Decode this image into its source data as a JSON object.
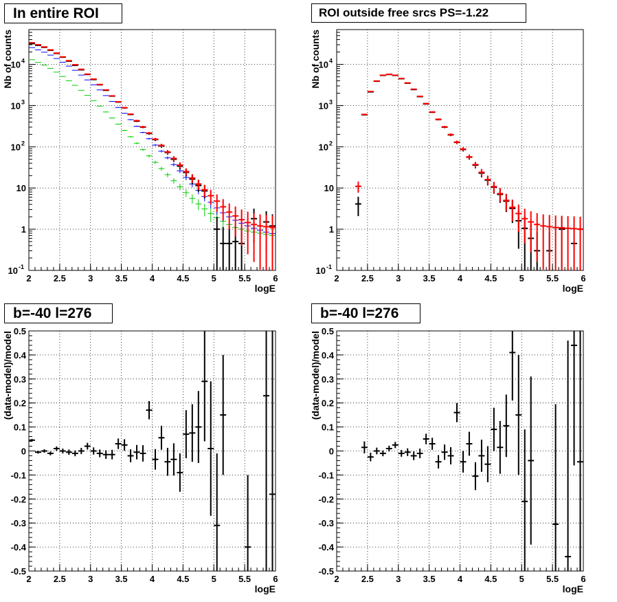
{
  "colors": {
    "data": "#000000",
    "model_total": "#ff0000",
    "model_blue": "#0000ff",
    "model_green": "#00cc00",
    "grid": "#000000"
  },
  "chart_data": [
    {
      "type": "scatter",
      "title": "In entire ROI",
      "xlabel": "logE",
      "ylabel": "Nb of counts",
      "xlim": [
        2,
        6
      ],
      "ylim": [
        0.1,
        70000
      ],
      "yscale": "log",
      "grid": true,
      "x_ticks": [
        "2",
        "2.5",
        "3",
        "3.5",
        "4",
        "4.5",
        "5",
        "5.5",
        "6"
      ],
      "y_ticks": [
        "10^-1",
        "1",
        "10",
        "10^2",
        "10^3",
        "10^4"
      ],
      "x": [
        2.05,
        2.15,
        2.25,
        2.35,
        2.45,
        2.55,
        2.65,
        2.75,
        2.85,
        2.95,
        3.05,
        3.15,
        3.25,
        3.35,
        3.45,
        3.55,
        3.65,
        3.75,
        3.85,
        3.95,
        4.05,
        4.15,
        4.25,
        4.35,
        4.45,
        4.55,
        4.65,
        4.75,
        4.85,
        4.95,
        5.05,
        5.15,
        5.25,
        5.35,
        5.45,
        5.55,
        5.65,
        5.75,
        5.85,
        5.95
      ],
      "series": [
        {
          "color": "#000000",
          "values": [
            32000,
            29000,
            26000,
            22000,
            18500,
            15000,
            12000,
            9500,
            7400,
            5700,
            4300,
            3200,
            2350,
            1700,
            1220,
            880,
            610,
            420,
            300,
            210,
            150,
            105,
            73,
            50,
            34,
            24,
            16.5,
            11.5,
            8.5,
            null,
            1,
            0.45,
            0.45,
            0.5,
            0.45,
            null,
            1.8,
            null,
            1.5,
            1.2
          ]
        },
        {
          "color": "#ff0000",
          "values": [
            33500,
            30000,
            26500,
            22500,
            18800,
            15200,
            12300,
            9800,
            7600,
            5800,
            4400,
            3250,
            2400,
            1720,
            1240,
            890,
            620,
            430,
            305,
            215,
            153,
            108,
            75,
            52,
            36,
            25,
            17.5,
            12.5,
            9,
            6.5,
            4.8,
            3.5,
            2.6,
            2.1,
            1.7,
            1.45,
            1.3,
            1.2,
            1.15,
            1.1
          ]
        },
        {
          "color": "#0000ff",
          "values": [
            25500,
            22500,
            19800,
            16800,
            13900,
            11300,
            9100,
            7200,
            5500,
            4200,
            3200,
            2400,
            1750,
            1260,
            900,
            650,
            455,
            315,
            222,
            157,
            110,
            78,
            54,
            37,
            26,
            18,
            12.5,
            8.8,
            6.2,
            4.5,
            3.3,
            2.5,
            2,
            1.65,
            1.4,
            1.2,
            1.05,
            0.95,
            0.85,
            0.78
          ]
        },
        {
          "color": "#00cc00",
          "values": [
            13000,
            11200,
            9600,
            8000,
            6500,
            5100,
            4000,
            3100,
            2350,
            1770,
            1320,
            970,
            700,
            500,
            355,
            250,
            175,
            122,
            85,
            60,
            42,
            29.5,
            21,
            15,
            10.7,
            7.7,
            5.6,
            4.1,
            3.1,
            2.4,
            1.9,
            1.55,
            1.3,
            1.1,
            1,
            0.9,
            0.85,
            0.8,
            0.75,
            0.7
          ]
        }
      ]
    },
    {
      "type": "scatter",
      "title": "ROI outside free srcs PS=-1.22",
      "xlabel": "logE",
      "ylabel": "Nb of counts",
      "xlim": [
        2,
        6
      ],
      "ylim": [
        0.1,
        70000
      ],
      "yscale": "log",
      "grid": true,
      "x_ticks": [
        "2",
        "2.5",
        "3",
        "3.5",
        "4",
        "4.5",
        "5",
        "5.5",
        "6"
      ],
      "y_ticks": [
        "10^-1",
        "1",
        "10",
        "10^2",
        "10^3",
        "10^4"
      ],
      "x": [
        2.35,
        2.45,
        2.55,
        2.65,
        2.75,
        2.85,
        2.95,
        3.05,
        3.15,
        3.25,
        3.35,
        3.45,
        3.55,
        3.65,
        3.75,
        3.85,
        3.95,
        4.05,
        4.15,
        4.25,
        4.35,
        4.45,
        4.55,
        4.65,
        4.75,
        4.85,
        4.95,
        5.05,
        5.15,
        5.25,
        5.35,
        5.45,
        5.55,
        5.65,
        5.75,
        5.85,
        5.95
      ],
      "series": [
        {
          "color": "#000000",
          "values": [
            4.1,
            600,
            2150,
            3900,
            5400,
            5700,
            5400,
            4500,
            3500,
            2450,
            1650,
            1100,
            690,
            460,
            300,
            195,
            128,
            86,
            56,
            36,
            23,
            15.5,
            10.5,
            7,
            4.8,
            3.2,
            1.6,
            1.05,
            0.6,
            0.3,
            null,
            0.3,
            null,
            1,
            null,
            0.45,
            1
          ]
        },
        {
          "color": "#ff0000",
          "values": [
            11,
            610,
            2200,
            3950,
            5450,
            5750,
            5450,
            4550,
            3550,
            2500,
            1680,
            1120,
            700,
            465,
            305,
            198,
            130,
            88,
            57,
            37,
            24,
            16,
            10.8,
            7.3,
            5,
            3.4,
            2.4,
            1.8,
            1.5,
            1.3,
            1.2,
            1.15,
            1.1,
            1.08,
            1.05,
            1.03,
            1
          ]
        }
      ]
    },
    {
      "type": "scatter",
      "title": "b=-40 l=276",
      "xlabel": "logE",
      "ylabel": "(data-model)/model",
      "xlim": [
        2,
        6
      ],
      "ylim": [
        -0.5,
        0.5
      ],
      "grid": true,
      "x_ticks": [
        "2",
        "2.5",
        "3",
        "3.5",
        "4",
        "4.5",
        "5",
        "5.5",
        "6"
      ],
      "y_ticks": [
        "-0.5",
        "-0.4",
        "-0.3",
        "-0.2",
        "-0.1",
        "0",
        "0.1",
        "0.2",
        "0.3",
        "0.4",
        "0.5"
      ],
      "x": [
        2.05,
        2.15,
        2.25,
        2.35,
        2.45,
        2.55,
        2.65,
        2.75,
        2.85,
        2.95,
        3.05,
        3.15,
        3.25,
        3.35,
        3.45,
        3.55,
        3.65,
        3.75,
        3.85,
        3.95,
        4.05,
        4.15,
        4.25,
        4.35,
        4.45,
        4.55,
        4.65,
        4.75,
        4.85,
        4.95,
        5.05,
        5.15,
        5.55,
        5.85,
        5.95
      ],
      "y": [
        0.045,
        -0.005,
        0.0,
        -0.01,
        0.01,
        0.0,
        -0.005,
        -0.01,
        0.0,
        0.02,
        0.0,
        -0.01,
        -0.015,
        -0.015,
        0.03,
        0.025,
        -0.02,
        -0.005,
        -0.01,
        0.17,
        -0.035,
        0.055,
        -0.045,
        -0.035,
        -0.09,
        0.07,
        0.075,
        0.1,
        0.29,
        0.01,
        -0.31,
        0.15,
        -0.4,
        0.23,
        -0.18
      ],
      "yerr": [
        0.005,
        0.006,
        0.007,
        0.008,
        0.009,
        0.01,
        0.011,
        0.012,
        0.013,
        0.014,
        0.015,
        0.016,
        0.018,
        0.02,
        0.022,
        0.024,
        0.027,
        0.03,
        0.034,
        0.038,
        0.043,
        0.05,
        0.058,
        0.067,
        0.08,
        0.1,
        0.12,
        0.15,
        0.25,
        0.28,
        0.3,
        0.25,
        0.3,
        1.0,
        1.0
      ]
    },
    {
      "type": "scatter",
      "title": "b=-40 l=276",
      "xlabel": "logE",
      "ylabel": "(data-model)/model",
      "xlim": [
        2,
        6
      ],
      "ylim": [
        -0.5,
        0.5
      ],
      "grid": true,
      "x_ticks": [
        "2",
        "2.5",
        "3",
        "3.5",
        "4",
        "4.5",
        "5",
        "5.5",
        "6"
      ],
      "y_ticks": [
        "-0.5",
        "-0.4",
        "-0.3",
        "-0.2",
        "-0.1",
        "0",
        "0.1",
        "0.2",
        "0.3",
        "0.4",
        "0.5"
      ],
      "x": [
        2.45,
        2.55,
        2.65,
        2.75,
        2.85,
        2.95,
        3.05,
        3.15,
        3.25,
        3.35,
        3.45,
        3.55,
        3.65,
        3.75,
        3.85,
        3.95,
        4.05,
        4.15,
        4.25,
        4.35,
        4.45,
        4.55,
        4.65,
        4.75,
        4.85,
        4.95,
        5.05,
        5.15,
        5.55,
        5.75,
        5.85,
        5.95
      ],
      "y": [
        0.015,
        -0.025,
        0.0,
        -0.01,
        0.01,
        0.025,
        -0.01,
        -0.005,
        -0.02,
        -0.01,
        0.05,
        0.03,
        -0.045,
        -0.005,
        -0.02,
        0.16,
        -0.045,
        0.03,
        -0.105,
        -0.02,
        -0.055,
        0.09,
        0.015,
        0.105,
        0.41,
        0.15,
        -0.21,
        -0.04,
        -0.305,
        -0.44,
        0.44,
        -0.045
      ],
      "yerr": [
        0.025,
        0.018,
        0.014,
        0.012,
        0.012,
        0.013,
        0.014,
        0.016,
        0.018,
        0.02,
        0.022,
        0.025,
        0.028,
        0.032,
        0.036,
        0.04,
        0.045,
        0.05,
        0.058,
        0.067,
        0.075,
        0.09,
        0.11,
        0.13,
        0.2,
        0.25,
        0.3,
        0.35,
        0.5,
        0.9,
        0.5,
        0.55
      ]
    }
  ]
}
